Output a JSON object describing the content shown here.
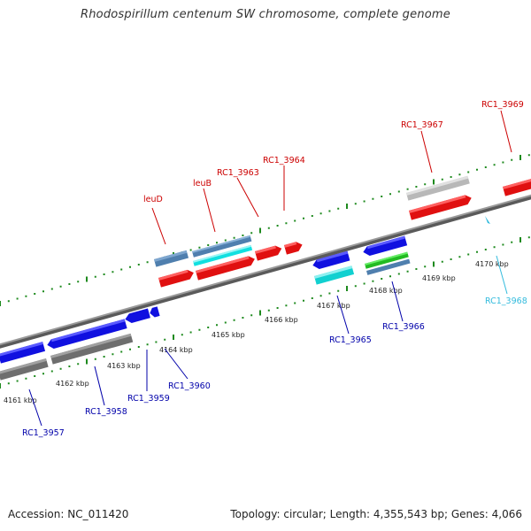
{
  "title": "Rhodospirillum centenum SW chromosome, complete genome",
  "footer": {
    "accession": "Accession: NC_011420",
    "summary": "Topology: circular; Length: 4,355,543 bp; Genes: 4,066"
  },
  "colors": {
    "backbone": "#8a8a8a",
    "ticks": "#1e8a1e",
    "label_top": "#cc0000",
    "label_bottom": "#0000aa",
    "label_cyan": "#33bbdd"
  },
  "scale": {
    "ticks": [
      {
        "label": "4161 kbp"
      },
      {
        "label": "4162 kbp"
      },
      {
        "label": "4163 kbp"
      },
      {
        "label": "4164 kbp"
      },
      {
        "label": "4165 kbp"
      },
      {
        "label": "4166 kbp"
      },
      {
        "label": "4167 kbp"
      },
      {
        "label": "4168 kbp"
      },
      {
        "label": "4169 kbp"
      },
      {
        "label": "4170 kbp"
      }
    ]
  },
  "labels": {
    "top": [
      {
        "text": "leuD"
      },
      {
        "text": "leuB"
      },
      {
        "text": "RC1_3963"
      },
      {
        "text": "RC1_3964"
      },
      {
        "text": "RC1_3967"
      },
      {
        "text": "RC1_3969"
      }
    ],
    "bottom": [
      {
        "text": "RC1_3957"
      },
      {
        "text": "RC1_3958"
      },
      {
        "text": "RC1_3959"
      },
      {
        "text": "RC1_3960"
      },
      {
        "text": "RC1_3965"
      },
      {
        "text": "RC1_3966"
      },
      {
        "text": "RC1_3968"
      }
    ]
  }
}
